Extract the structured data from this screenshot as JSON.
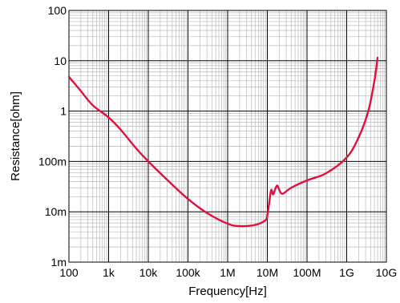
{
  "chart_data": {
    "type": "line",
    "xlabel": "Frequency[Hz]",
    "ylabel": "Resistance[ohm]",
    "x_scale": "log",
    "y_scale": "log",
    "xlim": [
      100,
      10000000000
    ],
    "ylim": [
      0.001,
      100
    ],
    "grid": true,
    "x_ticks": [
      {
        "value": 100,
        "label": "100"
      },
      {
        "value": 1000,
        "label": "1k"
      },
      {
        "value": 10000,
        "label": "10k"
      },
      {
        "value": 100000,
        "label": "100k"
      },
      {
        "value": 1000000,
        "label": "1M"
      },
      {
        "value": 10000000,
        "label": "10M"
      },
      {
        "value": 100000000,
        "label": "100M"
      },
      {
        "value": 1000000000,
        "label": "1G"
      },
      {
        "value": 10000000000,
        "label": "10G"
      }
    ],
    "y_ticks": [
      {
        "value": 0.001,
        "label": "1m"
      },
      {
        "value": 0.01,
        "label": "10m"
      },
      {
        "value": 0.1,
        "label": "100m"
      },
      {
        "value": 1,
        "label": "1"
      },
      {
        "value": 10,
        "label": "10"
      },
      {
        "value": 100,
        "label": "100"
      }
    ],
    "series": [
      {
        "color": "#e0103c",
        "x": [
          100,
          200,
          400,
          1000,
          2000,
          5000,
          10000,
          30000,
          100000,
          300000,
          1000000,
          2000000,
          5000000,
          9000000,
          10000000,
          11000000,
          12500000,
          14000000,
          16000000,
          18000000,
          21000000,
          25000000,
          40000000,
          100000000,
          300000000,
          1000000000,
          2000000000,
          3500000000,
          5000000000,
          6000000000
        ],
        "y": [
          4.8,
          2.5,
          1.3,
          0.75,
          0.43,
          0.18,
          0.1,
          0.043,
          0.018,
          0.0095,
          0.0058,
          0.0052,
          0.0055,
          0.0068,
          0.0085,
          0.014,
          0.027,
          0.022,
          0.029,
          0.033,
          0.025,
          0.023,
          0.03,
          0.042,
          0.058,
          0.12,
          0.3,
          1.0,
          4.0,
          11.5
        ]
      }
    ]
  }
}
